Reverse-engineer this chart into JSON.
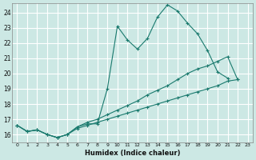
{
  "xlabel": "Humidex (Indice chaleur)",
  "background_color": "#cce8e4",
  "grid_color": "#b8d8d4",
  "line_color": "#1a7a6e",
  "xlim": [
    -0.5,
    23.5
  ],
  "ylim": [
    15.5,
    24.6
  ],
  "xticks": [
    0,
    1,
    2,
    3,
    4,
    5,
    6,
    7,
    8,
    9,
    10,
    11,
    12,
    13,
    14,
    15,
    16,
    17,
    18,
    19,
    20,
    21,
    22,
    23
  ],
  "yticks": [
    16,
    17,
    18,
    19,
    20,
    21,
    22,
    23,
    24
  ],
  "line1_x": [
    0,
    1,
    2,
    3,
    4,
    5,
    6,
    7,
    8,
    9,
    10,
    11,
    12,
    13,
    14,
    15,
    16,
    17,
    18,
    19,
    20,
    21,
    22,
    23
  ],
  "line1_y": [
    16.6,
    16.2,
    16.3,
    16.0,
    15.8,
    16.0,
    16.5,
    16.7,
    16.7,
    19.0,
    23.1,
    22.2,
    21.6,
    22.3,
    23.7,
    24.5,
    24.1,
    23.3,
    22.6,
    21.5,
    20.1,
    19.7,
    null,
    null
  ],
  "line2_x": [
    0,
    1,
    2,
    3,
    4,
    5,
    6,
    7,
    8,
    9,
    10,
    11,
    12,
    13,
    14,
    15,
    16,
    17,
    18,
    19,
    20,
    21,
    22,
    23
  ],
  "line2_y": [
    16.6,
    16.2,
    16.3,
    16.0,
    15.8,
    16.0,
    16.5,
    16.8,
    17.0,
    17.3,
    17.6,
    17.9,
    18.2,
    18.6,
    18.9,
    19.2,
    19.6,
    20.0,
    20.3,
    20.5,
    20.8,
    21.1,
    19.6,
    null
  ],
  "line3_x": [
    0,
    1,
    2,
    3,
    4,
    5,
    6,
    7,
    8,
    9,
    10,
    11,
    12,
    13,
    14,
    15,
    16,
    17,
    18,
    19,
    20,
    21,
    22,
    23
  ],
  "line3_y": [
    16.6,
    16.2,
    16.3,
    16.0,
    15.8,
    16.0,
    16.4,
    16.6,
    16.8,
    17.0,
    17.2,
    17.4,
    17.6,
    17.8,
    18.0,
    18.2,
    18.4,
    18.6,
    18.8,
    19.0,
    19.2,
    19.5,
    19.6,
    null
  ],
  "xlabel_fontsize": 6,
  "xtick_fontsize": 4.5,
  "ytick_fontsize": 5.5
}
